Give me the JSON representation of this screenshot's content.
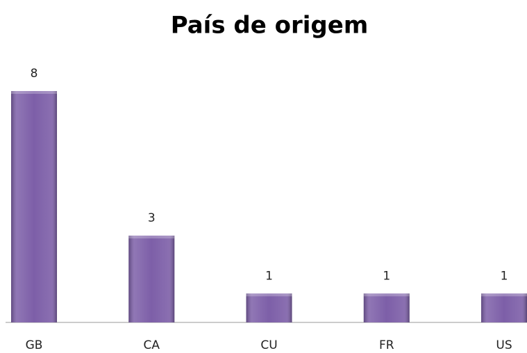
{
  "chart_data": {
    "type": "bar",
    "title": "País de origem",
    "categories": [
      "GB",
      "CA",
      "CU",
      "FR",
      "US"
    ],
    "values": [
      8,
      3,
      1,
      1,
      1
    ],
    "color": "#7d5fa8"
  }
}
